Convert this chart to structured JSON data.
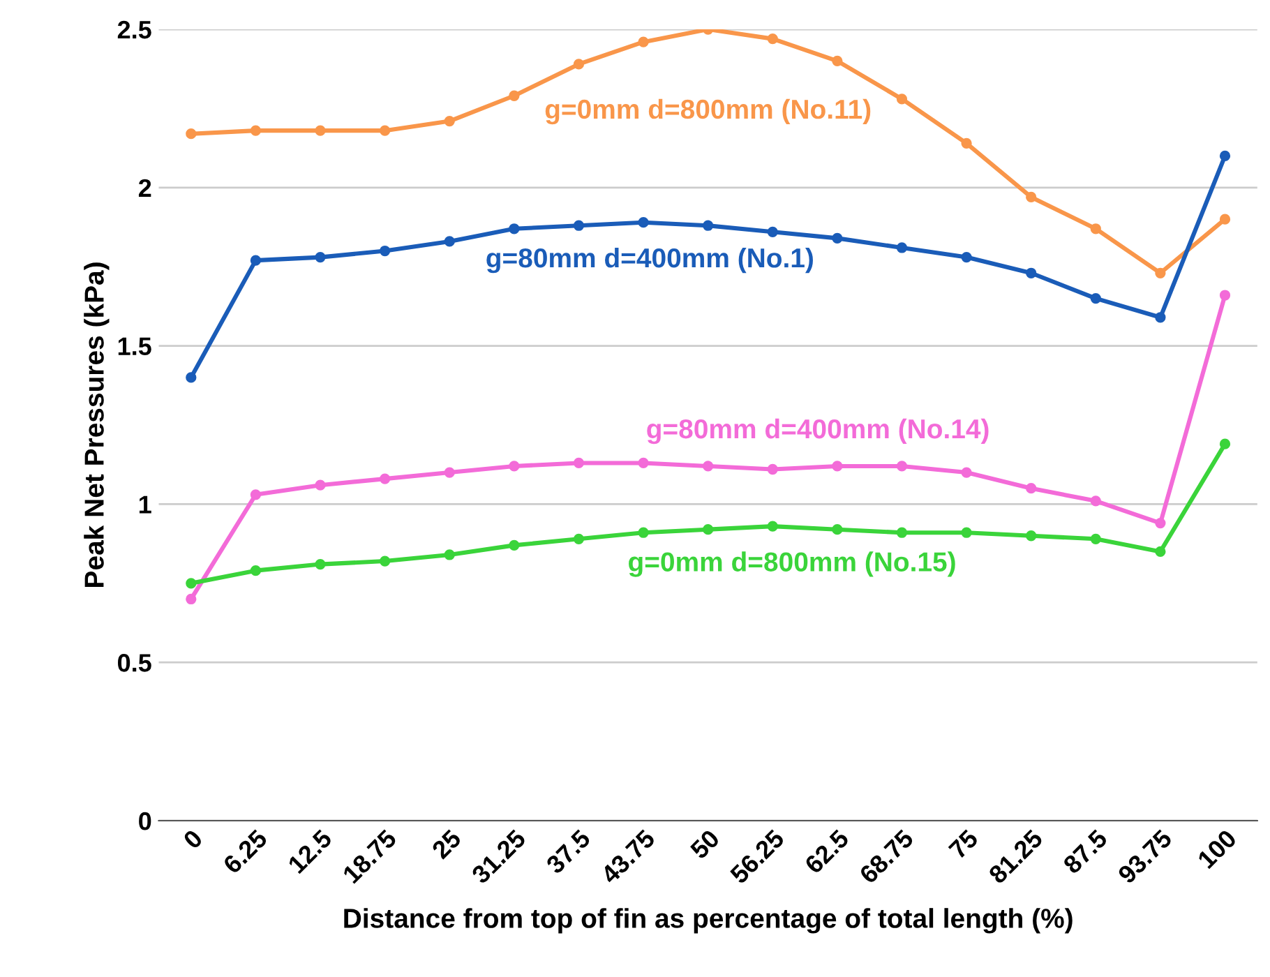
{
  "chart_data": {
    "type": "line",
    "xlabel": "Distance from top of fin as percentage of total length (%)",
    "ylabel": "Peak Net Pressures (kPa)",
    "categories": [
      "0",
      "6.25",
      "12.5",
      "18.75",
      "25",
      "31.25",
      "37.5",
      "43.75",
      "50",
      "56.25",
      "62.5",
      "68.75",
      "75",
      "81.25",
      "87.5",
      "93.75",
      "100"
    ],
    "series": [
      {
        "name": "g=0mm d=800mm (No.11)",
        "color": "#f9964a",
        "values": [
          2.17,
          2.18,
          2.18,
          2.18,
          2.21,
          2.29,
          2.39,
          2.46,
          2.5,
          2.47,
          2.4,
          2.28,
          2.14,
          1.97,
          1.87,
          1.73,
          1.9
        ]
      },
      {
        "name": "g=80mm d=400mm (No.1)",
        "color": "#1a5cb8",
        "values": [
          1.4,
          1.77,
          1.78,
          1.8,
          1.83,
          1.87,
          1.88,
          1.89,
          1.88,
          1.86,
          1.84,
          1.81,
          1.78,
          1.73,
          1.65,
          1.59,
          2.1
        ]
      },
      {
        "name": "g=80mm d=400mm (No.14)",
        "color": "#f36bd8",
        "values": [
          0.7,
          1.03,
          1.06,
          1.08,
          1.1,
          1.12,
          1.13,
          1.13,
          1.12,
          1.11,
          1.12,
          1.12,
          1.1,
          1.05,
          1.01,
          0.94,
          1.66
        ]
      },
      {
        "name": "g=0mm d=800mm (No.15)",
        "color": "#3ad43a",
        "values": [
          0.75,
          0.79,
          0.81,
          0.82,
          0.84,
          0.87,
          0.89,
          0.91,
          0.92,
          0.93,
          0.92,
          0.91,
          0.91,
          0.9,
          0.89,
          0.85,
          1.19
        ]
      }
    ],
    "ylim": [
      0,
      2.5
    ],
    "yticks": [
      0,
      0.5,
      1,
      1.5,
      2,
      2.5
    ],
    "grid": "y",
    "marker": "circle",
    "line_style": "solid",
    "legend": false
  }
}
